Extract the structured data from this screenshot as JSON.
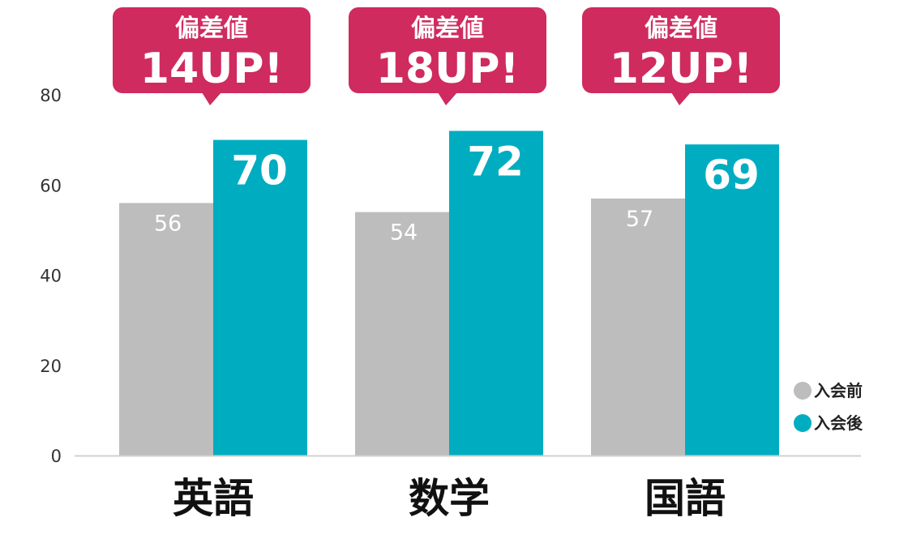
{
  "chart_data": {
    "type": "bar",
    "categories": [
      "英語",
      "数学",
      "国語"
    ],
    "series": [
      {
        "name": "入会前",
        "values": [
          56,
          54,
          57
        ],
        "color": "#bdbdbd"
      },
      {
        "name": "入会後",
        "values": [
          70,
          72,
          69
        ],
        "color": "#00adc0"
      }
    ],
    "ylim": [
      0,
      80
    ],
    "yticks": [
      "0",
      "20",
      "40",
      "60",
      "80"
    ],
    "grid": false,
    "legend_position": "bottom-right",
    "callouts": [
      {
        "line1": "偏差値",
        "line2": "14UP!"
      },
      {
        "line1": "偏差値",
        "line2": "18UP!"
      },
      {
        "line1": "偏差値",
        "line2": "12UP!"
      }
    ],
    "callout_color": "#cf2b5e",
    "axis_color": "#d0d0d0"
  }
}
